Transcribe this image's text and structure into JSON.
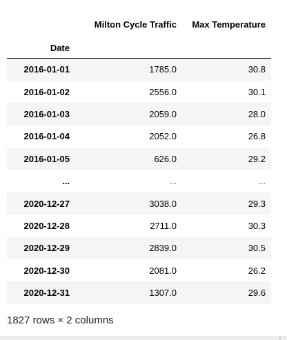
{
  "table": {
    "columns": [
      "Milton Cycle Traffic",
      "Max Temperature"
    ],
    "index_name": "Date",
    "rows": [
      {
        "date": "2016-01-01",
        "traffic": "1785.0",
        "temp": "30.8"
      },
      {
        "date": "2016-01-02",
        "traffic": "2556.0",
        "temp": "30.1"
      },
      {
        "date": "2016-01-03",
        "traffic": "2059.0",
        "temp": "28.0"
      },
      {
        "date": "2016-01-04",
        "traffic": "2052.0",
        "temp": "26.8"
      },
      {
        "date": "2016-01-05",
        "traffic": "626.0",
        "temp": "29.2"
      },
      {
        "date": "...",
        "traffic": "...",
        "temp": "..."
      },
      {
        "date": "2020-12-27",
        "traffic": "3038.0",
        "temp": "29.3"
      },
      {
        "date": "2020-12-28",
        "traffic": "2711.0",
        "temp": "30.3"
      },
      {
        "date": "2020-12-29",
        "traffic": "2839.0",
        "temp": "30.5"
      },
      {
        "date": "2020-12-30",
        "traffic": "2081.0",
        "temp": "26.2"
      },
      {
        "date": "2020-12-31",
        "traffic": "1307.0",
        "temp": "29.6"
      }
    ]
  },
  "shape_text": "1827 rows × 2 columns"
}
